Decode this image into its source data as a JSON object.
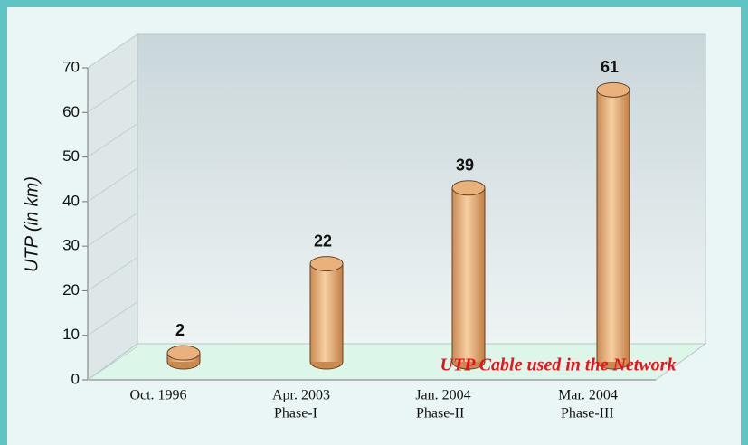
{
  "chart_data": {
    "type": "bar",
    "y_label": "UTP (in km)",
    "annotation": "UTP Cable used in the Network",
    "categories": [
      "Oct. 1996",
      "Apr. 2003",
      "Jan. 2004",
      "Mar. 2004"
    ],
    "category_sublabels": [
      null,
      "Phase-I",
      "Phase-II",
      "Phase-III"
    ],
    "values": [
      2,
      22,
      39,
      61
    ],
    "color": "#e9b27c",
    "ylim": [
      0,
      70
    ],
    "yticks": [
      0,
      10,
      20,
      30,
      40,
      50,
      60,
      70
    ]
  }
}
